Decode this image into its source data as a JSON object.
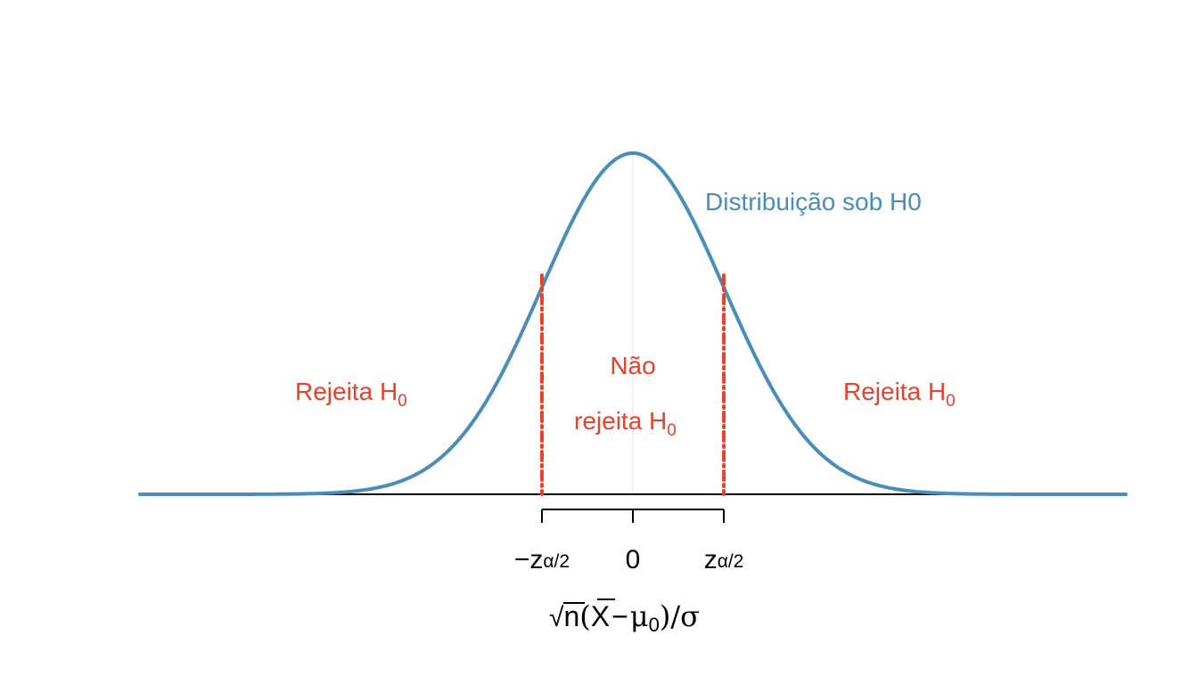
{
  "colors": {
    "curve": "#4a8db8",
    "critical": "#e8412c",
    "axis": "#000000",
    "center_line": "#dde6ec",
    "tick_text": "#000000"
  },
  "chart_data": {
    "type": "line",
    "title": "",
    "curve_label": "Distribuição sob H0",
    "distribution": "standard-normal",
    "x_range": [
      -5.42,
      5.42
    ],
    "critical_value": 1.0,
    "peak_density": 0.3989,
    "ticks": [
      {
        "value": -1.0,
        "label_main": "−z",
        "label_sub": "α/2"
      },
      {
        "value": 0.0,
        "label_main": "0",
        "label_sub": ""
      },
      {
        "value": 1.0,
        "label_main": "z",
        "label_sub": "α/2"
      }
    ],
    "regions": {
      "left": {
        "label": "Rejeita H",
        "sub": "0"
      },
      "center": {
        "line1": "Não",
        "line2": "rejeita H",
        "sub": "0"
      },
      "right": {
        "label": "Rejeita H",
        "sub": "0"
      }
    },
    "xlabel": {
      "sqrt": "√",
      "n": "n",
      "open": "(",
      "xbar": "X",
      "minus": "−",
      "mu": "μ",
      "mu_sub": "0",
      "close": ")",
      "slash": "/",
      "sigma": "σ"
    },
    "grid": false,
    "legend": "none"
  }
}
